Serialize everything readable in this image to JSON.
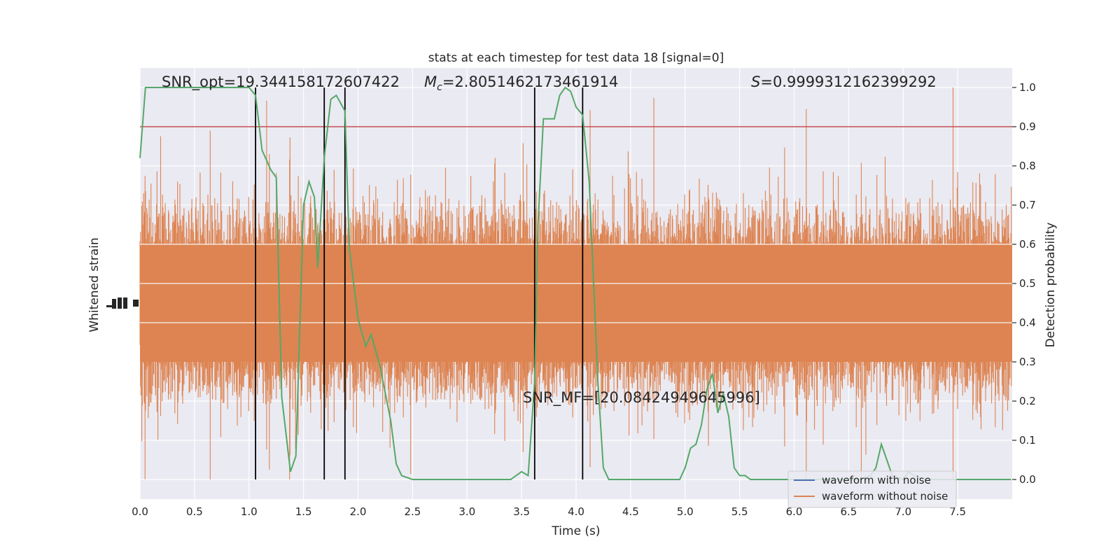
{
  "chart_data": {
    "type": "line",
    "title": "stats at each timestep for test data 18 [signal=0]",
    "xlabel": "Time (s)",
    "ylabel_left": "Whitened strain",
    "ylabel_right": "Detection probability",
    "xlim": [
      0,
      8
    ],
    "ylim_right": [
      -0.05,
      1.05
    ],
    "x_ticks": [
      0.0,
      0.5,
      1.0,
      1.5,
      2.0,
      2.5,
      3.0,
      3.5,
      4.0,
      4.5,
      5.0,
      5.5,
      6.0,
      6.5,
      7.0,
      7.5
    ],
    "x_tick_labels": [
      "0.0",
      "0.5",
      "1.0",
      "1.5",
      "2.0",
      "2.5",
      "3.0",
      "3.5",
      "4.0",
      "4.5",
      "5.0",
      "5.5",
      "6.0",
      "6.5",
      "7.0",
      "7.5"
    ],
    "y_right_ticks": [
      0.0,
      0.1,
      0.2,
      0.3,
      0.4,
      0.5,
      0.6,
      0.7,
      0.8,
      0.9,
      1.0
    ],
    "y_right_tick_labels": [
      "0.0",
      "0.1",
      "0.2",
      "0.3",
      "0.4",
      "0.5",
      "0.6",
      "0.7",
      "0.8",
      "0.9",
      "1.0"
    ],
    "grid": true,
    "threshold": {
      "value": 0.9,
      "color": "#c44e52"
    },
    "vertical_lines": [
      1.06,
      1.69,
      1.88,
      3.62,
      4.06
    ],
    "annotations": {
      "snr_opt": "SNR_opt=19.344158172607422",
      "mc_label": "M",
      "mc_sub": "c",
      "mc_value": "=2.8051462173461914",
      "s_label": "S",
      "s_value": "=0.9999312162399292",
      "snr_mf": "SNR_MF=[20.08424949645996]"
    },
    "series": [
      {
        "name": "waveform with noise",
        "color": "#4c72b0",
        "display": "hidden-under-orange"
      },
      {
        "name": "waveform without noise",
        "color": "#dd8452",
        "display": "dense-band",
        "center": 0.45,
        "core_band": [
          0.3,
          0.6
        ],
        "spike_range": [
          0.0,
          1.0
        ]
      },
      {
        "name": "detection probability",
        "color": "#55a868",
        "x": [
          0.0,
          0.05,
          0.1,
          0.2,
          0.4,
          0.6,
          0.8,
          1.0,
          1.06,
          1.12,
          1.2,
          1.25,
          1.3,
          1.38,
          1.43,
          1.5,
          1.55,
          1.6,
          1.63,
          1.69,
          1.75,
          1.8,
          1.88,
          1.92,
          2.0,
          2.07,
          2.12,
          2.2,
          2.3,
          2.35,
          2.4,
          2.5,
          2.6,
          2.8,
          3.0,
          3.2,
          3.3,
          3.4,
          3.45,
          3.5,
          3.56,
          3.62,
          3.65,
          3.7,
          3.8,
          3.85,
          3.9,
          3.95,
          4.0,
          4.06,
          4.12,
          4.2,
          4.25,
          4.3,
          4.4,
          4.6,
          4.8,
          4.95,
          5.0,
          5.05,
          5.1,
          5.15,
          5.2,
          5.25,
          5.3,
          5.35,
          5.4,
          5.45,
          5.5,
          5.55,
          5.6,
          5.8,
          6.0,
          6.2,
          6.4,
          6.6,
          6.7,
          6.75,
          6.8,
          6.85,
          6.9,
          7.0,
          7.05,
          7.1,
          7.2,
          7.4,
          7.6,
          7.8,
          7.99
        ],
        "y": [
          0.82,
          1.0,
          1.0,
          1.0,
          1.0,
          1.0,
          1.0,
          1.0,
          0.98,
          0.84,
          0.79,
          0.77,
          0.21,
          0.02,
          0.06,
          0.7,
          0.76,
          0.72,
          0.54,
          0.82,
          0.97,
          0.98,
          0.94,
          0.59,
          0.41,
          0.34,
          0.37,
          0.29,
          0.15,
          0.04,
          0.01,
          0.0,
          0.0,
          0.0,
          0.0,
          0.0,
          0.0,
          0.0,
          0.01,
          0.02,
          0.01,
          0.25,
          0.65,
          0.92,
          0.92,
          0.98,
          1.0,
          0.99,
          0.95,
          0.93,
          0.76,
          0.25,
          0.03,
          0.0,
          0.0,
          0.0,
          0.0,
          0.0,
          0.03,
          0.08,
          0.09,
          0.14,
          0.23,
          0.27,
          0.17,
          0.22,
          0.16,
          0.03,
          0.01,
          0.01,
          0.0,
          0.0,
          0.0,
          0.0,
          0.0,
          0.0,
          0.01,
          0.03,
          0.09,
          0.05,
          0.01,
          0.0,
          0.02,
          0.01,
          0.0,
          0.0,
          0.0,
          0.0,
          0.0
        ]
      }
    ],
    "legend": {
      "placement": "lower-right",
      "entries": [
        "waveform with noise",
        "waveform without noise"
      ]
    }
  }
}
